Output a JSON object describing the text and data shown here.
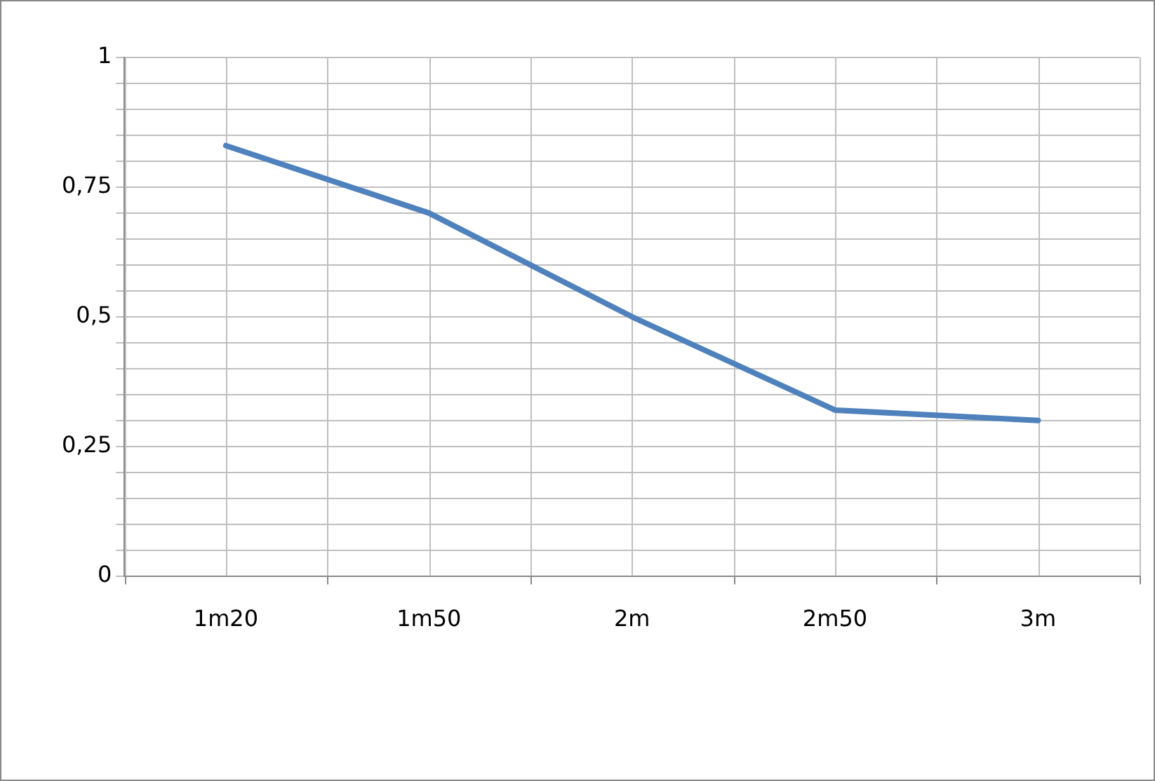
{
  "chart_data": {
    "type": "line",
    "categories": [
      "1m20",
      "1m50",
      "2m",
      "2m50",
      "3m"
    ],
    "series": [
      {
        "color": "#4f81bd",
        "values": [
          0.83,
          0.7,
          0.5,
          0.32,
          0.3
        ]
      }
    ],
    "ylim": [
      0,
      1
    ],
    "yticks": [
      {
        "value": 0,
        "label": "0"
      },
      {
        "value": 0.05,
        "label": null
      },
      {
        "value": 0.1,
        "label": null
      },
      {
        "value": 0.15,
        "label": null
      },
      {
        "value": 0.2,
        "label": null
      },
      {
        "value": 0.25,
        "label": "0,25"
      },
      {
        "value": 0.3,
        "label": null
      },
      {
        "value": 0.35,
        "label": null
      },
      {
        "value": 0.4,
        "label": null
      },
      {
        "value": 0.45,
        "label": null
      },
      {
        "value": 0.5,
        "label": "0,5"
      },
      {
        "value": 0.55,
        "label": null
      },
      {
        "value": 0.6,
        "label": null
      },
      {
        "value": 0.65,
        "label": null
      },
      {
        "value": 0.7,
        "label": null
      },
      {
        "value": 0.75,
        "label": "0,75"
      },
      {
        "value": 0.8,
        "label": null
      },
      {
        "value": 0.85,
        "label": null
      },
      {
        "value": 0.9,
        "label": null
      },
      {
        "value": 0.95,
        "label": null
      },
      {
        "value": 1,
        "label": "1"
      }
    ],
    "grid": true,
    "legend": false,
    "marker": "none",
    "line_style": "solid"
  }
}
